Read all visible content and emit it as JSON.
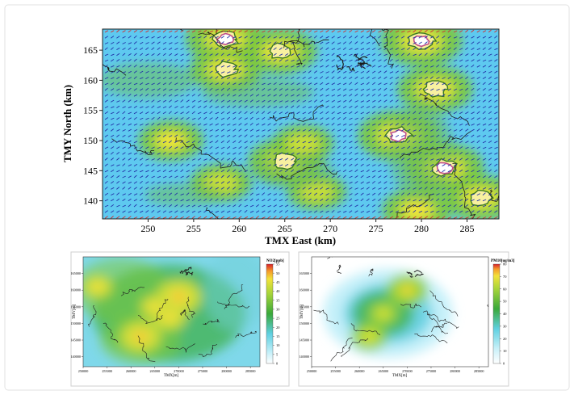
{
  "chart_data": [
    {
      "type": "heatmap",
      "subtype": "pollutant concentration map with wind vectors",
      "title": "",
      "xlabel": "TMX East (km)",
      "ylabel": "TMY North (km)",
      "xlim": [
        245,
        288.5
      ],
      "ylim": [
        137,
        168.5
      ],
      "xticks": [
        250,
        255,
        260,
        265,
        270,
        275,
        280,
        285
      ],
      "yticks": [
        140,
        145,
        150,
        155,
        160,
        165
      ],
      "colors": {
        "low": "#5ec9f0",
        "mid": "#7cc83a",
        "high": "#f5e53a",
        "peak": "#ffffff",
        "ring": "#c0508a"
      },
      "hotspots": [
        {
          "x": 258.5,
          "y": 166.8,
          "level": 0.95
        },
        {
          "x": 258.5,
          "y": 161.8,
          "level": 0.75
        },
        {
          "x": 264.5,
          "y": 164.8,
          "level": 0.8
        },
        {
          "x": 280.0,
          "y": 166.5,
          "level": 1.0
        },
        {
          "x": 281.5,
          "y": 158.5,
          "level": 0.85
        },
        {
          "x": 277.5,
          "y": 150.8,
          "level": 1.0
        },
        {
          "x": 282.5,
          "y": 145.5,
          "level": 0.95
        },
        {
          "x": 265.0,
          "y": 146.5,
          "level": 0.8
        },
        {
          "x": 252.5,
          "y": 150.0,
          "level": 0.6
        },
        {
          "x": 286.5,
          "y": 140.5,
          "level": 0.8
        },
        {
          "x": 279.5,
          "y": 138.5,
          "level": 0.7
        },
        {
          "x": 268.5,
          "y": 141.5,
          "level": 0.45
        },
        {
          "x": 258.0,
          "y": 143.0,
          "level": 0.5
        },
        {
          "x": 267.0,
          "y": 149.5,
          "level": 0.5
        }
      ]
    },
    {
      "type": "heatmap",
      "subtype": "NO2 concentration map",
      "title": "",
      "xlabel": "TMX[m]",
      "ylabel": "TMY[m]",
      "xlim": [
        250000,
        287000
      ],
      "ylim": [
        137000,
        170000
      ],
      "xticks": [
        "250000",
        "255000",
        "260000",
        "265000",
        "270000",
        "275000",
        "280000",
        "285000"
      ],
      "yticks": [
        "140000",
        "145000",
        "150000",
        "155000",
        "160000",
        "165000"
      ],
      "colorbar": {
        "label": "NO2[ppb]",
        "ticks": [
          "0",
          "5",
          "10",
          "15",
          "20",
          "25",
          "30",
          "35",
          "40",
          "45",
          "50",
          "55"
        ],
        "min": 0,
        "max": 55
      },
      "hotspots": [
        {
          "x": 270000,
          "y": 158000,
          "level": 1.0
        },
        {
          "x": 262000,
          "y": 146000,
          "level": 0.9
        },
        {
          "x": 268000,
          "y": 152000,
          "level": 0.7
        },
        {
          "x": 253000,
          "y": 161000,
          "level": 0.55
        },
        {
          "x": 265000,
          "y": 155000,
          "level": 0.55
        }
      ]
    },
    {
      "type": "heatmap",
      "subtype": "PM10 concentration map",
      "title": "",
      "xlabel": "TMX[m]",
      "ylabel": "TMY[m]",
      "xlim": [
        250000,
        287000
      ],
      "ylim": [
        137000,
        170000
      ],
      "xticks": [
        "250000",
        "255000",
        "260000",
        "265000",
        "270000",
        "275000",
        "280000",
        "285000"
      ],
      "yticks": [
        "140000",
        "145000",
        "150000",
        "155000",
        "160000",
        "165000"
      ],
      "colorbar": {
        "label": "PM10[ug/m3]",
        "ticks": [
          "0",
          "10",
          "20",
          "30",
          "40",
          "50",
          "60",
          "70",
          "80"
        ],
        "min": 0,
        "max": 80
      },
      "hotspots": [
        {
          "x": 270000,
          "y": 160000,
          "level": 0.9
        },
        {
          "x": 262000,
          "y": 146000,
          "level": 0.75
        },
        {
          "x": 265000,
          "y": 153000,
          "level": 0.6
        }
      ]
    }
  ]
}
